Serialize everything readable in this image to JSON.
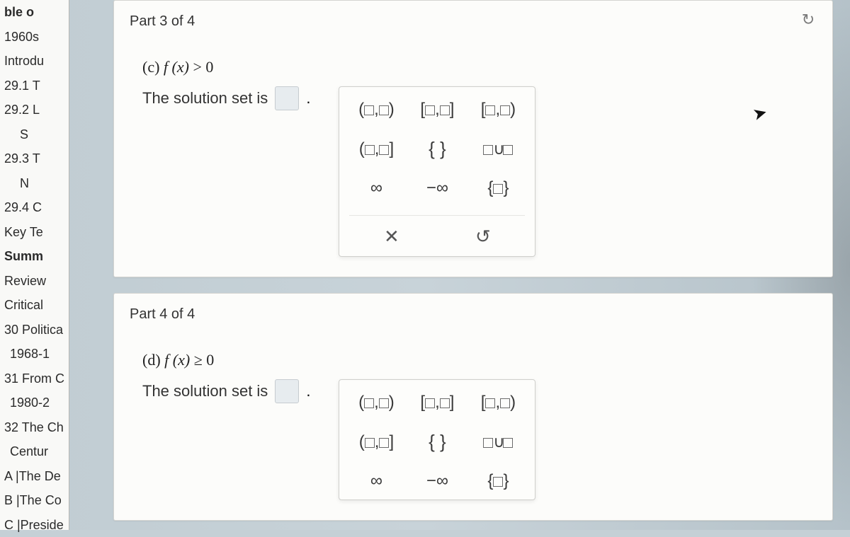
{
  "sidebar": {
    "items": [
      {
        "label": "ble o",
        "cls": "row bold"
      },
      {
        "label": "1960s",
        "cls": "row"
      },
      {
        "label": "Introdu",
        "cls": "row"
      },
      {
        "label": "29.1 T",
        "cls": "row"
      },
      {
        "label": "29.2 L",
        "cls": "row"
      },
      {
        "label": "S",
        "cls": "row sub2"
      },
      {
        "label": "29.3 T",
        "cls": "row"
      },
      {
        "label": "N",
        "cls": "row sub2"
      },
      {
        "label": "29.4 C",
        "cls": "row"
      },
      {
        "label": "Key Te",
        "cls": "row"
      },
      {
        "label": "Summ",
        "cls": "row bold"
      },
      {
        "label": "Review",
        "cls": "row"
      },
      {
        "label": "Critical",
        "cls": "row"
      },
      {
        "label": "30 Politica",
        "cls": "row"
      },
      {
        "label": "1968-1",
        "cls": "row sub"
      },
      {
        "label": "31 From C",
        "cls": "row"
      },
      {
        "label": "1980-2",
        "cls": "row sub"
      },
      {
        "label": "32 The Ch",
        "cls": "row"
      },
      {
        "label": "Centur",
        "cls": "row sub"
      },
      {
        "label": "A |The De",
        "cls": "row"
      },
      {
        "label": "B |The Co",
        "cls": "row"
      },
      {
        "label": "C |Preside",
        "cls": "row"
      }
    ]
  },
  "part3": {
    "header": "Part 3 of 4",
    "q_prefix": "(c) ",
    "q_fx": "f (x)",
    "q_op": " > 0",
    "solution_label": "The solution set is",
    "period": ".",
    "replay_glyph": "↻"
  },
  "part4": {
    "header": "Part 4 of 4",
    "q_prefix": "(d) ",
    "q_fx": "f (x)",
    "q_op": " ≥ 0",
    "solution_label": "The solution set is",
    "period": "."
  },
  "palette": {
    "open_open": "(□,□)",
    "closed_closed": "[□,□]",
    "closed_open": "[□,□)",
    "open_closed": "(□,□]",
    "braces": "{ }",
    "union": "□∪□",
    "inf": "∞",
    "neg_inf": "−∞",
    "set_one": "{□}",
    "clear": "✕",
    "undo": "↺"
  },
  "colors": {
    "card_bg": "#fcfcfa",
    "page_bg": "#c5d0d6",
    "answer_box": "#e7ecef"
  }
}
